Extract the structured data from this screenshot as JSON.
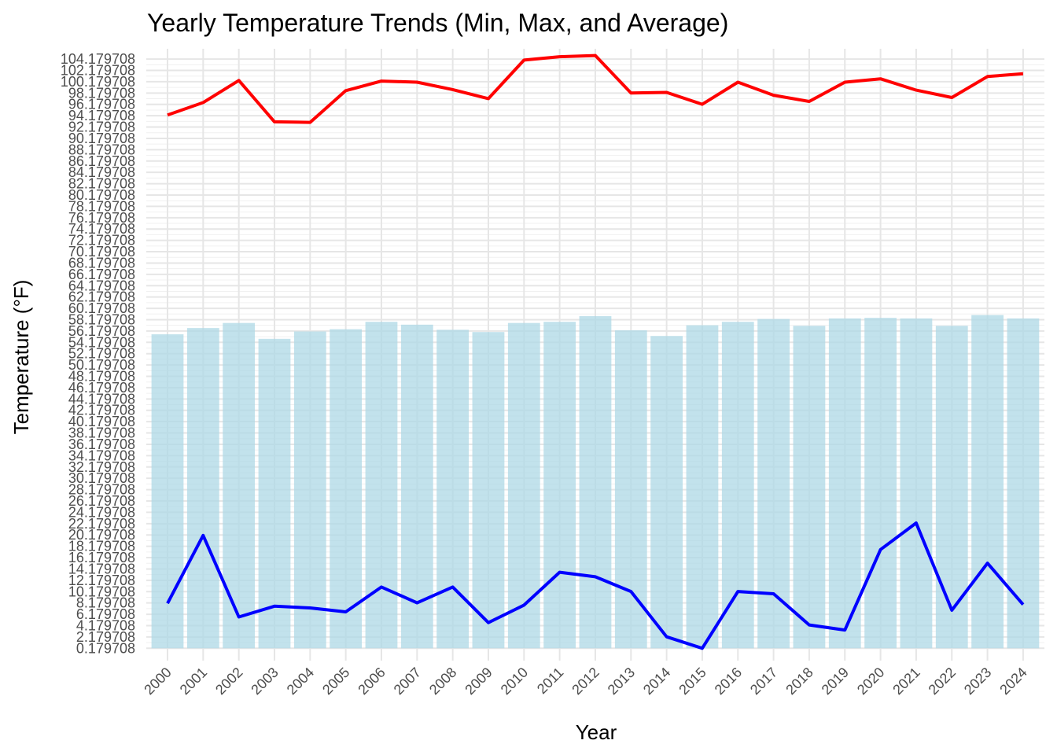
{
  "chart_data": {
    "type": "bar+line",
    "title": "Yearly Temperature Trends (Min, Max, and Average)",
    "xlabel": "Year",
    "ylabel": "Temperature (°F)",
    "categories": [
      "2000",
      "2001",
      "2002",
      "2003",
      "2004",
      "2005",
      "2006",
      "2007",
      "2008",
      "2009",
      "2010",
      "2011",
      "2012",
      "2013",
      "2014",
      "2015",
      "2016",
      "2017",
      "2018",
      "2019",
      "2020",
      "2021",
      "2022",
      "2023",
      "2024"
    ],
    "yticks": [
      0.179708,
      2.179708,
      4.179708,
      6.179708,
      8.179708,
      10.179708,
      12.179708,
      14.179708,
      16.179708,
      18.179708,
      20.179708,
      22.179708,
      24.179708,
      26.179708,
      28.179708,
      30.179708,
      32.179708,
      34.179708,
      36.179708,
      38.179708,
      40.179708,
      42.179708,
      44.179708,
      46.179708,
      48.179708,
      50.179708,
      52.179708,
      54.179708,
      56.179708,
      58.179708,
      60.179708,
      62.179708,
      64.179708,
      66.179708,
      68.179708,
      70.179708,
      72.179708,
      74.179708,
      76.179708,
      78.179708,
      80.179708,
      82.179708,
      84.179708,
      86.179708,
      88.179708,
      90.179708,
      92.179708,
      94.179708,
      96.179708,
      98.179708,
      100.179708,
      102.179708,
      104.179708
    ],
    "ytick_labels": [
      "0.179708",
      "2.179708",
      "4.179708",
      "6.179708",
      "8.179708",
      "10.179708",
      "12.179708",
      "14.179708",
      "16.179708",
      "18.179708",
      "20.179708",
      "22.179708",
      "24.179708",
      "26.179708",
      "28.179708",
      "30.179708",
      "32.179708",
      "34.179708",
      "36.179708",
      "38.179708",
      "40.179708",
      "42.179708",
      "44.179708",
      "46.179708",
      "48.179708",
      "50.179708",
      "52.179708",
      "54.179708",
      "56.179708",
      "58.179708",
      "60.179708",
      "62.179708",
      "64.179708",
      "66.179708",
      "68.179708",
      "70.179708",
      "72.179708",
      "74.179708",
      "76.179708",
      "78.179708",
      "80.179708",
      "82.179708",
      "84.179708",
      "86.179708",
      "88.179708",
      "90.179708",
      "92.179708",
      "94.179708",
      "96.179708",
      "98.179708",
      "100.179708",
      "102.179708",
      "104.179708"
    ],
    "ylim": [
      -2.0,
      106.0
    ],
    "grid": true,
    "legend": "none",
    "series": [
      {
        "type": "bar",
        "color": "#add8e6",
        "values": [
          55.6,
          56.7,
          57.6,
          54.8,
          56.1,
          56.5,
          57.8,
          57.3,
          56.4,
          56.0,
          57.6,
          57.8,
          58.8,
          56.3,
          55.3,
          57.2,
          57.8,
          58.3,
          57.1,
          58.4,
          58.5,
          58.4,
          57.1,
          59.0,
          58.4
        ]
      },
      {
        "type": "line",
        "color": "#ff0000",
        "values": [
          94.3,
          96.5,
          100.4,
          93.1,
          93.0,
          98.6,
          100.3,
          100.1,
          98.8,
          97.2,
          104.0,
          104.6,
          104.8,
          98.2,
          98.3,
          96.2,
          100.1,
          97.8,
          96.7,
          100.1,
          100.7,
          98.7,
          97.4,
          101.1,
          101.6
        ]
      },
      {
        "type": "line",
        "color": "#0000ff",
        "values": [
          8.1,
          20.1,
          5.7,
          7.6,
          7.3,
          6.6,
          11.0,
          8.2,
          11.0,
          4.7,
          7.8,
          13.6,
          12.8,
          10.2,
          2.2,
          0.18,
          10.2,
          9.8,
          4.3,
          3.4,
          17.6,
          22.3,
          6.9,
          15.2,
          7.9
        ]
      }
    ]
  }
}
